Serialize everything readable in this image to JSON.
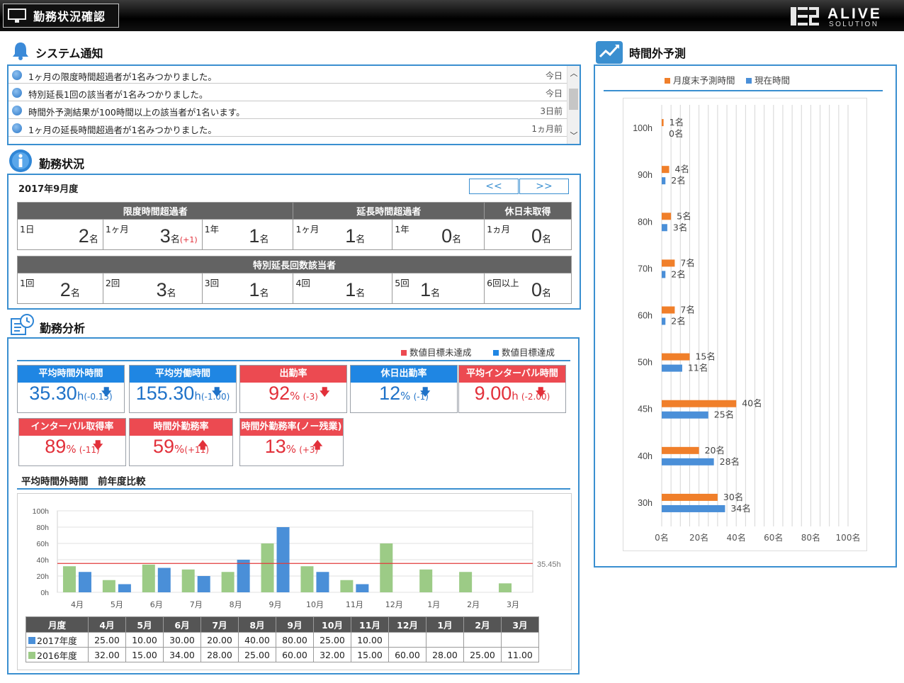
{
  "app": {
    "title": "勤務状況確認",
    "logo_main": "ALIVE",
    "logo_sub": "SOLUTION"
  },
  "notifications": {
    "title": "システム通知",
    "items": [
      {
        "message": "1ヶ月の限度時間超過者が1名みつかりました。",
        "when": "今日"
      },
      {
        "message": "特別延長1回の該当者が1名みつかりました。",
        "when": "今日"
      },
      {
        "message": "時間外予測結果が100時間以上の該当者が1名います。",
        "when": "3日前"
      },
      {
        "message": "1ヶ月の延長時間超過者が1名みつかりました。",
        "when": "1ヵ月前"
      }
    ]
  },
  "work_status": {
    "title": "勤務状況",
    "period": "2017年9月度",
    "prev_label": "<<",
    "next_label": ">>",
    "groups1": {
      "limit": "限度時間超過者",
      "extension": "延長時間超過者",
      "holiday": "休日未取得"
    },
    "row1": [
      {
        "label": "1日",
        "value": "2",
        "unit": "名",
        "delta": ""
      },
      {
        "label": "1ヶ月",
        "value": "3",
        "unit": "名",
        "delta": "(+1)"
      },
      {
        "label": "1年",
        "value": "1",
        "unit": "名",
        "delta": ""
      },
      {
        "label": "1ヶ月",
        "value": "1",
        "unit": "名",
        "delta": ""
      },
      {
        "label": "1年",
        "value": "0",
        "unit": "名",
        "delta": ""
      },
      {
        "label": "1ヵ月",
        "value": "0",
        "unit": "名",
        "delta": ""
      }
    ],
    "group2": "特別延長回数該当者",
    "row2": [
      {
        "label": "1回",
        "value": "2",
        "unit": "名"
      },
      {
        "label": "2回",
        "value": "3",
        "unit": "名"
      },
      {
        "label": "3回",
        "value": "1",
        "unit": "名"
      },
      {
        "label": "4回",
        "value": "1",
        "unit": "名"
      },
      {
        "label": "5回",
        "value": "1",
        "unit": "名"
      },
      {
        "label": "6回以上",
        "value": "0",
        "unit": "名"
      }
    ]
  },
  "analysis": {
    "title": "勤務分析",
    "legend_unmet": "数値目標未達成",
    "legend_met": "数値目標達成",
    "colors": {
      "unmet": "#ec4a51",
      "met": "#1f86e3"
    },
    "kpis": [
      {
        "label": "平均時間外時間",
        "value": "35.30",
        "unit": "h",
        "delta": "(-0.15)",
        "status": "met",
        "arrow": "down"
      },
      {
        "label": "平均労働時間",
        "value": "155.30",
        "unit": "h",
        "delta": "(-1.00)",
        "status": "met",
        "arrow": "down"
      },
      {
        "label": "出勤率",
        "value": "92",
        "unit": "%",
        "delta": "(-3)",
        "status": "unmet",
        "arrow": "down"
      },
      {
        "label": "休日出勤率",
        "value": "12",
        "unit": "%",
        "delta": "(-1)",
        "status": "met",
        "arrow": "down"
      },
      {
        "label": "平均インターバル時間",
        "value": "9.00",
        "unit": "h",
        "delta": "(-2.00)",
        "status": "unmet",
        "arrow": "down"
      },
      {
        "label": "インターバル取得率",
        "value": "89",
        "unit": "%",
        "delta": "(-11)",
        "status": "unmet",
        "arrow": "down"
      },
      {
        "label": "時間外勤務率",
        "value": "59",
        "unit": "%",
        "delta": "(+11)",
        "status": "unmet",
        "arrow": "up"
      },
      {
        "label": "時間外勤務率(ノー残業)",
        "value": "13",
        "unit": "%",
        "delta": "(+3)",
        "status": "unmet",
        "arrow": "up"
      }
    ],
    "comparison_title": "平均時間外時間　前年度比較",
    "table_header": "月度"
  },
  "forecast": {
    "title": "時間外予測",
    "legend_forecast": "月度末予測時間",
    "legend_current": "現在時間"
  },
  "chart_data": [
    {
      "type": "bar",
      "orientation": "vertical",
      "categories": [
        "4月",
        "5月",
        "6月",
        "7月",
        "8月",
        "9月",
        "10月",
        "11月",
        "12月",
        "1月",
        "2月",
        "3月"
      ],
      "series": [
        {
          "name": "2017年度",
          "color": "#4a8fd8",
          "values": [
            25.0,
            10.0,
            30.0,
            20.0,
            40.0,
            80.0,
            25.0,
            10.0,
            null,
            null,
            null,
            null
          ],
          "labels": [
            "25.00",
            "10.00",
            "30.00",
            "20.00",
            "40.00",
            "80.00",
            "25.00",
            "10.00",
            "",
            "",
            "",
            ""
          ]
        },
        {
          "name": "2016年度",
          "color": "#9ccb86",
          "values": [
            32.0,
            15.0,
            34.0,
            28.0,
            25.0,
            60.0,
            32.0,
            15.0,
            60.0,
            28.0,
            25.0,
            11.0
          ],
          "labels": [
            "32.00",
            "15.00",
            "34.00",
            "28.00",
            "25.00",
            "60.00",
            "32.00",
            "15.00",
            "60.00",
            "28.00",
            "25.00",
            "11.00"
          ]
        }
      ],
      "reference_line": {
        "value": 35.45,
        "label": "35.45h",
        "color": "#e23b3b"
      },
      "yticks": [
        "0h",
        "20h",
        "40h",
        "60h",
        "80h",
        "100h"
      ],
      "ylim": [
        0,
        100
      ],
      "grid": true
    },
    {
      "type": "bar",
      "orientation": "horizontal",
      "categories": [
        "100h",
        "90h",
        "80h",
        "70h",
        "60h",
        "50h",
        "45h",
        "40h",
        "30h"
      ],
      "series": [
        {
          "name": "月度末予測時間",
          "color": "#f07f2a",
          "values": [
            1,
            4,
            5,
            7,
            7,
            15,
            40,
            20,
            30
          ],
          "labels": [
            "1名",
            "4名",
            "5名",
            "7名",
            "7名",
            "15名",
            "40名",
            "20名",
            "30名"
          ]
        },
        {
          "name": "現在時間",
          "color": "#4a8fd8",
          "values": [
            0,
            2,
            3,
            2,
            2,
            11,
            25,
            28,
            34
          ],
          "labels": [
            "0名",
            "2名",
            "3名",
            "2名",
            "2名",
            "11名",
            "25名",
            "28名",
            "34名"
          ]
        }
      ],
      "xticks": [
        "0名",
        "20名",
        "40名",
        "60名",
        "80名",
        "100名"
      ],
      "xlim": [
        0,
        100
      ],
      "grid": true
    }
  ]
}
